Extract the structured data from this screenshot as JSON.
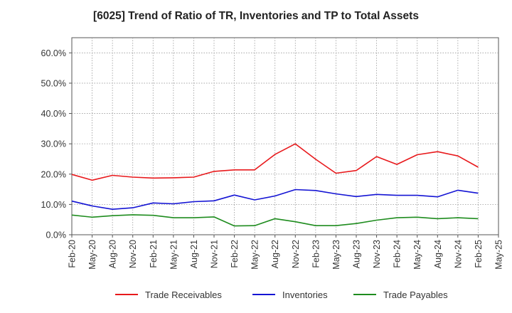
{
  "chart_data": {
    "type": "line",
    "title": "[6025]  Trend of Ratio of TR, Inventories and TP to Total Assets",
    "xlabel": "",
    "ylabel": "",
    "x": [
      "Feb-20",
      "May-20",
      "Aug-20",
      "Nov-20",
      "Feb-21",
      "May-21",
      "Aug-21",
      "Nov-21",
      "Feb-22",
      "May-22",
      "Aug-22",
      "Nov-22",
      "Feb-23",
      "May-23",
      "Aug-23",
      "Nov-23",
      "Feb-24",
      "May-24",
      "Aug-24",
      "Nov-24",
      "Feb-25",
      "May-25"
    ],
    "x_tick_labels": [
      "Feb-20",
      "May-20",
      "Aug-20",
      "Nov-20",
      "Feb-21",
      "May-21",
      "Aug-21",
      "Nov-21",
      "Feb-22",
      "May-22",
      "Aug-22",
      "Nov-22",
      "Feb-23",
      "May-23",
      "Aug-23",
      "Nov-23",
      "Feb-24",
      "May-24",
      "Aug-24",
      "Nov-24",
      "Feb-25",
      "May-25"
    ],
    "y_tick_labels": [
      "0.0%",
      "10.0%",
      "20.0%",
      "30.0%",
      "40.0%",
      "50.0%",
      "60.0%"
    ],
    "y_ticks": [
      0,
      10,
      20,
      30,
      40,
      50,
      60
    ],
    "ylim": [
      0,
      65
    ],
    "grid": true,
    "legend_position": "bottom",
    "series": [
      {
        "name": "Trade Receivables",
        "color": "#e8191c",
        "values": [
          19.9,
          18.0,
          19.6,
          19.0,
          18.7,
          18.8,
          19.0,
          20.9,
          21.4,
          21.4,
          26.5,
          30.0,
          24.9,
          20.3,
          21.2,
          25.8,
          23.2,
          26.4,
          27.4,
          26.0,
          22.3,
          null
        ]
      },
      {
        "name": "Inventories",
        "color": "#1414d4",
        "values": [
          11.1,
          9.5,
          8.4,
          8.9,
          10.5,
          10.2,
          10.9,
          11.2,
          13.1,
          11.5,
          12.8,
          14.9,
          14.6,
          13.5,
          12.6,
          13.3,
          13.0,
          13.0,
          12.5,
          14.7,
          13.7,
          null
        ]
      },
      {
        "name": "Trade Payables",
        "color": "#1e8c1e",
        "values": [
          6.5,
          5.8,
          6.3,
          6.6,
          6.4,
          5.6,
          5.6,
          5.9,
          2.9,
          3.0,
          5.3,
          4.3,
          3.0,
          3.0,
          3.7,
          4.8,
          5.6,
          5.8,
          5.3,
          5.6,
          5.3,
          null
        ]
      }
    ]
  }
}
